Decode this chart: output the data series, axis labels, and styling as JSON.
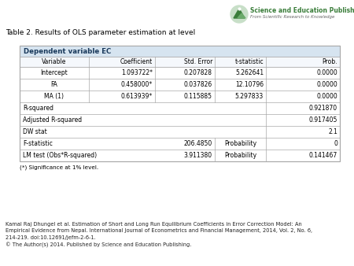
{
  "title": "Table 2. Results of OLS parameter estimation at level",
  "dependent_label": "Dependent variable EC",
  "col_headers": [
    "Variable",
    "Coefficient",
    "Std. Error",
    "t-statistic",
    "Prob."
  ],
  "rows": [
    [
      "Intercept",
      "1.093722*",
      "0.207828",
      "5.262641",
      "0.0000"
    ],
    [
      "FA",
      "0.458000*",
      "0.037826",
      "12.10796",
      "0.0000"
    ],
    [
      "MA (1)",
      "0.613939*",
      "0.115885",
      "5.297833",
      "0.0000"
    ]
  ],
  "stats": [
    [
      "R-squared",
      "",
      "",
      "",
      "0.921870"
    ],
    [
      "Adjusted R-squared",
      "",
      "",
      "",
      "0.917405"
    ],
    [
      "DW stat",
      "",
      "",
      "",
      "2.1"
    ],
    [
      "F-statistic",
      "",
      "206.4850",
      "Probability",
      "0"
    ],
    [
      "LM test (Obs*R-squared)",
      "",
      "3.911380",
      "Probability",
      "0.141467"
    ]
  ],
  "footnote": "(*) Significance at 1% level.",
  "citation_line1": "Kamal Raj Dhungel et al. Estimation of Short and Long Run Equilibrium Coefficients in Error Correction Model: An",
  "citation_line2": "Empirical Evidence from Nepal. International Journal of Econometrics and Financial Management, 2014, Vol. 2, No. 6,",
  "citation_line3": "214-219. doi:10.12691/jefm-2-6-1.",
  "citation_line4": "© The Author(s) 2014. Published by Science and Education Publishing.",
  "logo_text1": "Science and Education Publishing",
  "logo_text2": "From Scientific Research to Knowledge",
  "header_bg": "#d6e4f0",
  "col_header_bg": "#eaf0f7",
  "border_color": "#aaaaaa",
  "bg_color": "#ffffff",
  "dep_text_color": "#1a3a5c",
  "logo_green": "#3a7d3a",
  "logo_circle_color": "#c8dfc8"
}
